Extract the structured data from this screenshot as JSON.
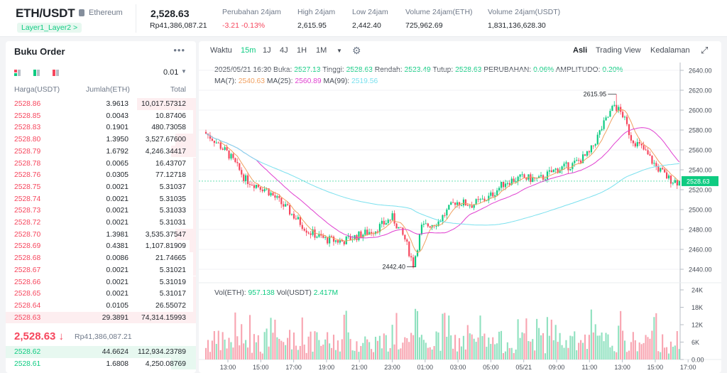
{
  "header": {
    "pair": "ETH/USDT",
    "coin_name": "Ethereum",
    "tag": "Layer1_Layer2 >",
    "last_price": "2,528.63",
    "last_price_idr": "Rp41,386,087.21",
    "stats": [
      {
        "label": "Perubahan 24jam",
        "value": "-3.21 -0.13%"
      },
      {
        "label": "High 24jam",
        "value": "2,615.95"
      },
      {
        "label": "Low 24jam",
        "value": "2,442.40"
      },
      {
        "label": "Volume 24jam(ETH)",
        "value": "725,962.69"
      },
      {
        "label": "Volume 24jam(USDT)",
        "value": "1,831,136,628.30"
      }
    ]
  },
  "orderbook": {
    "title": "Buku Order",
    "precision": "0.01",
    "headers": {
      "price": "Harga(USDT)",
      "amount": "Jumlah(ETH)",
      "total": "Total"
    },
    "asks": [
      [
        "2528.86",
        "3.9613",
        "10,017.57312"
      ],
      [
        "2528.85",
        "0.0043",
        "10.87406"
      ],
      [
        "2528.83",
        "0.1901",
        "480.73058"
      ],
      [
        "2528.80",
        "1.3950",
        "3,527.67600"
      ],
      [
        "2528.79",
        "1.6792",
        "4,246.34417"
      ],
      [
        "2528.78",
        "0.0065",
        "16.43707"
      ],
      [
        "2528.76",
        "0.0305",
        "77.12718"
      ],
      [
        "2528.75",
        "0.0021",
        "5.31037"
      ],
      [
        "2528.74",
        "0.0021",
        "5.31035"
      ],
      [
        "2528.73",
        "0.0021",
        "5.31033"
      ],
      [
        "2528.72",
        "0.0021",
        "5.31031"
      ],
      [
        "2528.70",
        "1.3981",
        "3,535.37547"
      ],
      [
        "2528.69",
        "0.4381",
        "1,107.81909"
      ],
      [
        "2528.68",
        "0.0086",
        "21.74665"
      ],
      [
        "2528.67",
        "0.0021",
        "5.31021"
      ],
      [
        "2528.66",
        "0.0021",
        "5.31019"
      ],
      [
        "2528.65",
        "0.0021",
        "5.31017"
      ],
      [
        "2528.64",
        "0.0105",
        "26.55072"
      ],
      [
        "2528.63",
        "29.3891",
        "74,314.15993"
      ]
    ],
    "mid_price": "2,528.63 ↓",
    "mid_price_idr": "Rp41,386,087.21",
    "bids": [
      [
        "2528.62",
        "44.6624",
        "112,934.23789"
      ],
      [
        "2528.61",
        "1.6808",
        "4,250.08769"
      ]
    ]
  },
  "chart": {
    "intervals": [
      "Waktu",
      "15m",
      "1J",
      "4J",
      "1H",
      "1M"
    ],
    "active_interval": "15m",
    "views": [
      "Asli",
      "Trading View",
      "Kedalaman"
    ],
    "active_view": "Asli",
    "ohlc": {
      "date": "2025/05/21 16:30",
      "open_label": "Buka:",
      "open": "2527.13",
      "high_label": "Tinggi:",
      "high": "2528.63",
      "low_label": "Rendah:",
      "low": "2523.49",
      "close_label": "Tutup:",
      "close": "2528.63",
      "change_label": "PERUBAHAN:",
      "change": "0.06%",
      "amp_label": "AMPLITUDO:",
      "amp": "0.20%"
    },
    "ma": [
      {
        "label": "MA(7):",
        "value": "2540.63",
        "color": "#f0a060"
      },
      {
        "label": "MA(25):",
        "value": "2560.89",
        "color": "#e040d0"
      },
      {
        "label": "MA(99):",
        "value": "2519.56",
        "color": "#7ae0ee"
      }
    ],
    "vol": {
      "eth_label": "Vol(ETH):",
      "eth": "957.138",
      "usdt_label": "Vol(USDT)",
      "usdt": "2.417M"
    },
    "price_axis": [
      "2640.00",
      "2620.00",
      "2600.00",
      "2580.00",
      "2560.00",
      "2540.00",
      "2520.00",
      "2500.00",
      "2480.00",
      "2460.00",
      "2440.00"
    ],
    "current_price_tag": "2528.63",
    "high_marker": "2615.95",
    "low_marker": "2442.40",
    "vol_axis": [
      "24K",
      "18K",
      "12K",
      "6K",
      "0.00"
    ],
    "time_axis": [
      "13:00",
      "15:00",
      "17:00",
      "19:00",
      "21:00",
      "23:00",
      "01:00",
      "03:00",
      "05:00",
      "05/21",
      "09:00",
      "11:00",
      "13:00",
      "15:00",
      "17:00"
    ],
    "colors": {
      "up": "#0ecb81",
      "down": "#f6465d"
    }
  }
}
